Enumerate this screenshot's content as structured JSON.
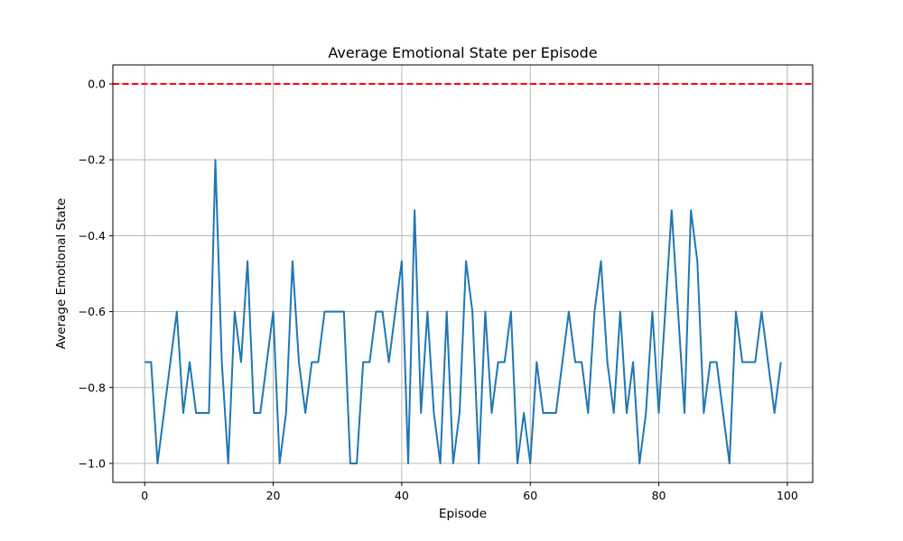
{
  "chart_data": {
    "type": "line",
    "title": "Average Emotional State per Episode",
    "xlabel": "Episode",
    "ylabel": "Average Emotional State",
    "xlim": [
      -4.95,
      103.95
    ],
    "ylim": [
      -1.05,
      0.05
    ],
    "xticks": [
      0,
      20,
      40,
      60,
      80,
      100
    ],
    "xtick_labels": [
      "0",
      "20",
      "40",
      "60",
      "80",
      "100"
    ],
    "yticks": [
      0.0,
      -0.2,
      -0.4,
      -0.6,
      -0.8,
      -1.0
    ],
    "ytick_labels": [
      "0.0",
      "−0.2",
      "−0.4",
      "−0.6",
      "−0.8",
      "−1.0"
    ],
    "grid": true,
    "reference_line": {
      "y": 0.0,
      "color": "#ff0000",
      "style": "dashed"
    },
    "series": [
      {
        "color": "#1f77b4",
        "x": [
          0,
          1,
          2,
          3,
          4,
          5,
          6,
          7,
          8,
          9,
          10,
          11,
          12,
          13,
          14,
          15,
          16,
          17,
          18,
          19,
          20,
          21,
          22,
          23,
          24,
          25,
          26,
          27,
          28,
          29,
          30,
          31,
          32,
          33,
          34,
          35,
          36,
          37,
          38,
          39,
          40,
          41,
          42,
          43,
          44,
          45,
          46,
          47,
          48,
          49,
          50,
          51,
          52,
          53,
          54,
          55,
          56,
          57,
          58,
          59,
          60,
          61,
          62,
          63,
          64,
          65,
          66,
          67,
          68,
          69,
          70,
          71,
          72,
          73,
          74,
          75,
          76,
          77,
          78,
          79,
          80,
          81,
          82,
          83,
          84,
          85,
          86,
          87,
          88,
          89,
          90,
          91,
          92,
          93,
          94,
          95,
          96,
          97,
          98,
          99
        ],
        "values": [
          -0.733,
          -0.733,
          -1.0,
          -0.867,
          -0.733,
          -0.6,
          -0.867,
          -0.733,
          -0.867,
          -0.867,
          -0.867,
          -0.2,
          -0.733,
          -1.0,
          -0.6,
          -0.733,
          -0.467,
          -0.867,
          -0.867,
          -0.733,
          -0.6,
          -1.0,
          -0.867,
          -0.467,
          -0.733,
          -0.867,
          -0.733,
          -0.733,
          -0.6,
          -0.6,
          -0.6,
          -0.6,
          -1.0,
          -1.0,
          -0.733,
          -0.733,
          -0.6,
          -0.6,
          -0.733,
          -0.6,
          -0.467,
          -1.0,
          -0.333,
          -0.867,
          -0.6,
          -0.867,
          -1.0,
          -0.6,
          -1.0,
          -0.867,
          -0.467,
          -0.6,
          -1.0,
          -0.6,
          -0.867,
          -0.733,
          -0.733,
          -0.6,
          -1.0,
          -0.867,
          -1.0,
          -0.733,
          -0.867,
          -0.867,
          -0.867,
          -0.733,
          -0.6,
          -0.733,
          -0.733,
          -0.867,
          -0.6,
          -0.467,
          -0.733,
          -0.867,
          -0.6,
          -0.867,
          -0.733,
          -1.0,
          -0.867,
          -0.6,
          -0.867,
          -0.6,
          -0.333,
          -0.6,
          -0.867,
          -0.333,
          -0.467,
          -0.867,
          -0.733,
          -0.733,
          -0.867,
          -1.0,
          -0.6,
          -0.733,
          -0.733,
          -0.733,
          -0.6,
          -0.733,
          -0.867,
          -0.733
        ]
      }
    ]
  }
}
